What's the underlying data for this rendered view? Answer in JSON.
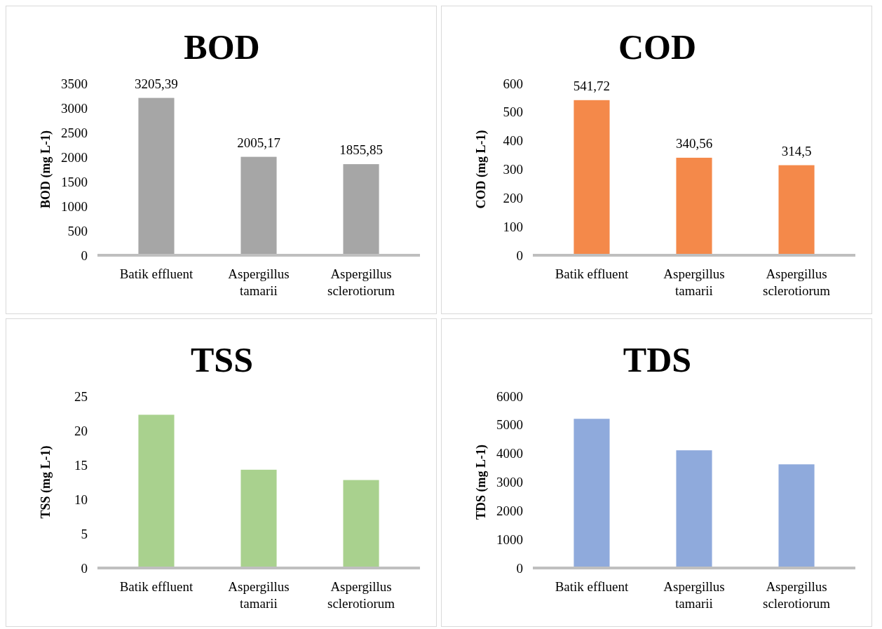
{
  "chart_data": [
    {
      "type": "bar",
      "title": "BOD",
      "ylabel": "BOD (mg L-1)",
      "categories": [
        "Batik effluent",
        "Aspergillus tamarii",
        "Aspergillus sclerotiorum"
      ],
      "values": [
        3205.39,
        2005.17,
        1855.85
      ],
      "value_labels": [
        "3205,39",
        "2005,17",
        "1855,85"
      ],
      "color": "#a6a6a6",
      "ylim": [
        0,
        3500
      ],
      "yticks": [
        0,
        500,
        1000,
        1500,
        2000,
        2500,
        3000,
        3500
      ],
      "grid": false
    },
    {
      "type": "bar",
      "title": "COD",
      "ylabel": "COD (mg L-1)",
      "categories": [
        "Batik effluent",
        "Aspergillus tamarii",
        "Aspergillus sclerotiorum"
      ],
      "values": [
        541.72,
        340.56,
        314.5
      ],
      "value_labels": [
        "541,72",
        "340,56",
        "314,5"
      ],
      "color": "#f4894a",
      "ylim": [
        0,
        600
      ],
      "yticks": [
        0,
        100,
        200,
        300,
        400,
        500,
        600
      ],
      "grid": false
    },
    {
      "type": "bar",
      "title": "TSS",
      "ylabel": "TSS (mg L-1)",
      "categories": [
        "Batik effluent",
        "Aspergillus tamarii",
        "Aspergillus sclerotiorum"
      ],
      "values": [
        22.3,
        14.3,
        12.8
      ],
      "color": "#a9d18e",
      "ylim": [
        0,
        25
      ],
      "yticks": [
        0,
        5,
        10,
        15,
        20,
        25
      ],
      "grid": false
    },
    {
      "type": "bar",
      "title": "TDS",
      "ylabel": "TDS (mg L-1)",
      "categories": [
        "Batik effluent",
        "Aspergillus tamarii",
        "Aspergillus sclerotiorum"
      ],
      "values": [
        5210,
        4110,
        3620
      ],
      "color": "#8faadc",
      "ylim": [
        0,
        6000
      ],
      "yticks": [
        0,
        1000,
        2000,
        3000,
        4000,
        5000,
        6000
      ],
      "grid": false
    }
  ]
}
